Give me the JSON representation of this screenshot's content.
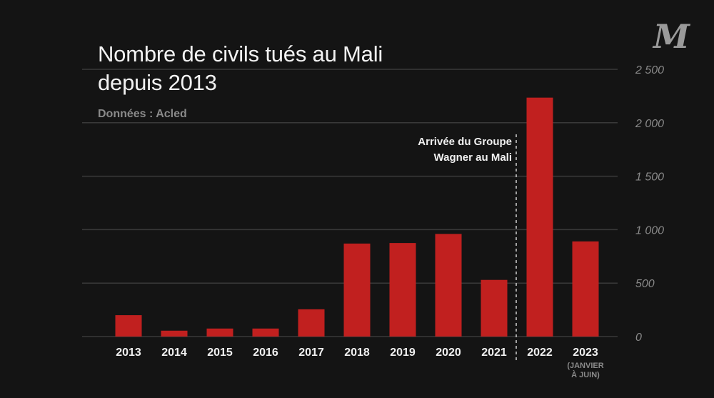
{
  "header": {
    "title_line1": "Nombre de civils tués au Mali",
    "title_line2": "depuis 2013",
    "source": "Données : Acled",
    "logo": "M"
  },
  "annotation": {
    "line1": "Arrivée du Groupe",
    "line2": "Wagner au Mali",
    "between": [
      "2021",
      "2022"
    ]
  },
  "colors": {
    "background": "#141414",
    "bar": "#c1201f",
    "grid": "#3a3a3a",
    "tick_label": "#8a8a8a",
    "category_label": "#f0f0f0",
    "note_label": "#8a8a8a",
    "annotation_line": "#d0d0d0"
  },
  "chart_data": {
    "type": "bar",
    "title": "Nombre de civils tués au Mali depuis 2013",
    "subtitle": "Données : Acled",
    "xlabel": "",
    "ylabel": "",
    "categories": [
      "2013",
      "2014",
      "2015",
      "2016",
      "2017",
      "2018",
      "2019",
      "2020",
      "2021",
      "2022",
      "2023"
    ],
    "category_notes": {
      "2023": [
        "(JANVIER",
        "À JUIN)"
      ]
    },
    "values": [
      200,
      55,
      75,
      75,
      255,
      870,
      875,
      960,
      530,
      2235,
      890
    ],
    "ylim": [
      0,
      2500
    ],
    "yticks": [
      0,
      500,
      1000,
      1500,
      2000,
      2500
    ],
    "ytick_labels": [
      "0",
      "500",
      "1 000",
      "1 500",
      "2 000",
      "2 500"
    ],
    "y_axis_side": "right",
    "grid": true,
    "legend": "none",
    "annotations": [
      {
        "text": "Arrivée du Groupe Wagner au Mali",
        "position": "between 2021 and 2022",
        "style": "dashed vertical line"
      }
    ]
  }
}
